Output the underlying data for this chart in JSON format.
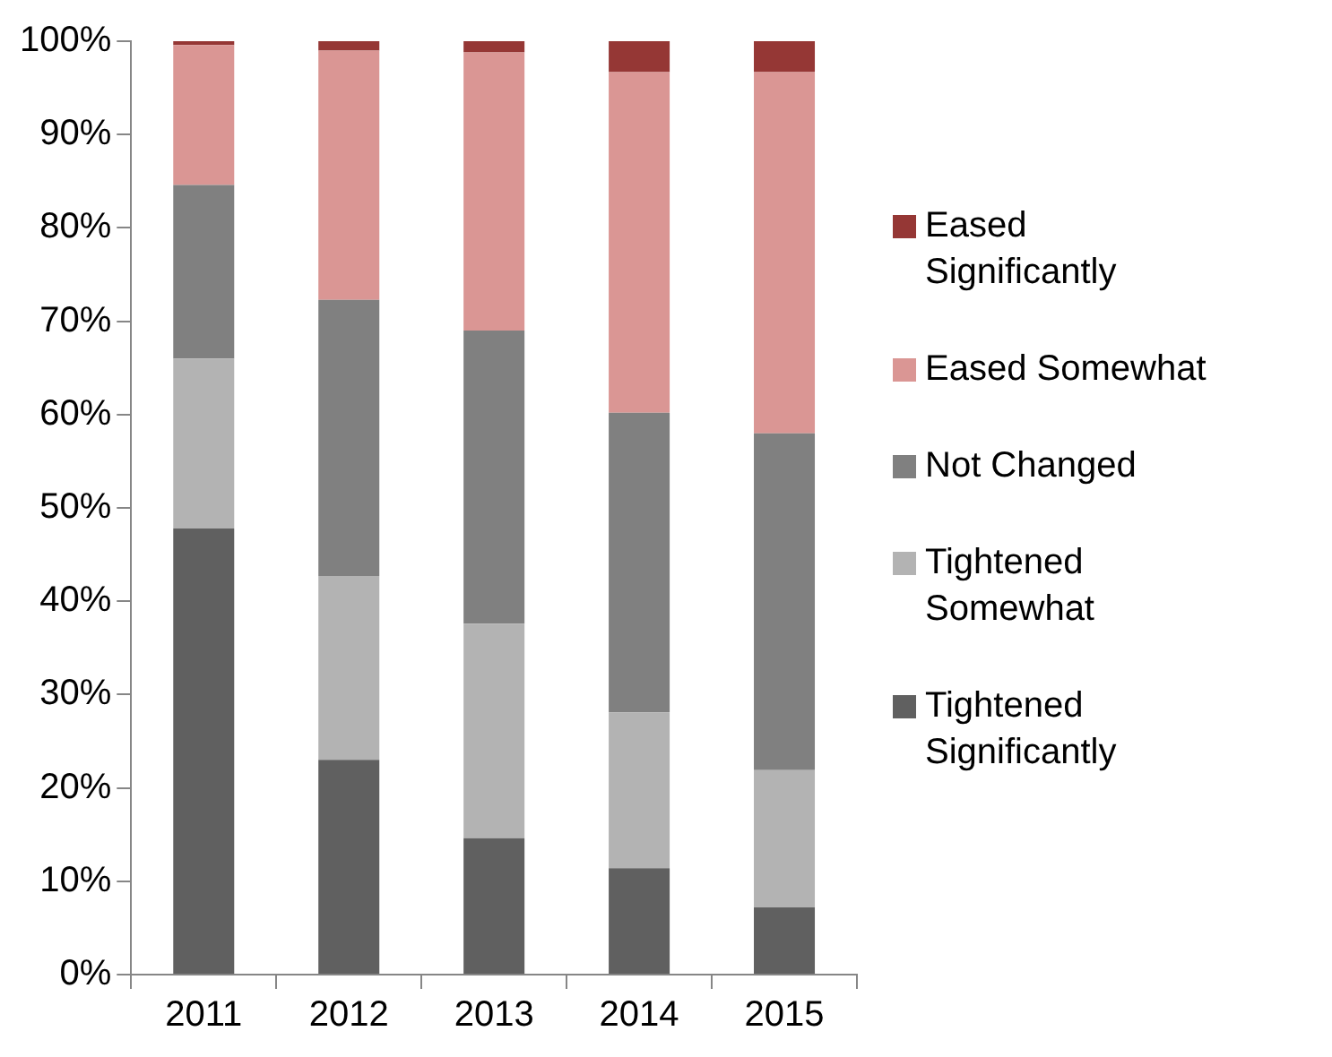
{
  "chart_data": {
    "type": "bar",
    "stacked": true,
    "categories": [
      "2011",
      "2012",
      "2013",
      "2014",
      "2015"
    ],
    "series": [
      {
        "name": "Tightened Significantly",
        "color": "#606060",
        "values": [
          47.8,
          23,
          14.6,
          11.4,
          7.2
        ]
      },
      {
        "name": "Tightened Somewhat",
        "color": "#b3b3b3",
        "values": [
          18.2,
          19.7,
          23,
          16.7,
          14.7
        ]
      },
      {
        "name": "Not Changed",
        "color": "#808080",
        "values": [
          18.6,
          29.6,
          31.4,
          32.1,
          36.1
        ]
      },
      {
        "name": "Eased Somewhat",
        "color": "#da9694",
        "values": [
          15,
          26.7,
          29.8,
          36.5,
          38.7
        ]
      },
      {
        "name": "Eased Significantly",
        "color": "#953735",
        "values": [
          0.4,
          1,
          1.2,
          3.3,
          3.3
        ]
      }
    ],
    "ylim": [
      0,
      100
    ],
    "yticks": [
      {
        "value": 0,
        "label": "0%"
      },
      {
        "value": 10,
        "label": "10%"
      },
      {
        "value": 20,
        "label": "20%"
      },
      {
        "value": 30,
        "label": "30%"
      },
      {
        "value": 40,
        "label": "40%"
      },
      {
        "value": 50,
        "label": "50%"
      },
      {
        "value": 60,
        "label": "60%"
      },
      {
        "value": 70,
        "label": "70%"
      },
      {
        "value": 80,
        "label": "80%"
      },
      {
        "value": 90,
        "label": "90%"
      },
      {
        "value": 100,
        "label": "100%"
      }
    ],
    "grid": false,
    "legend": "right"
  }
}
